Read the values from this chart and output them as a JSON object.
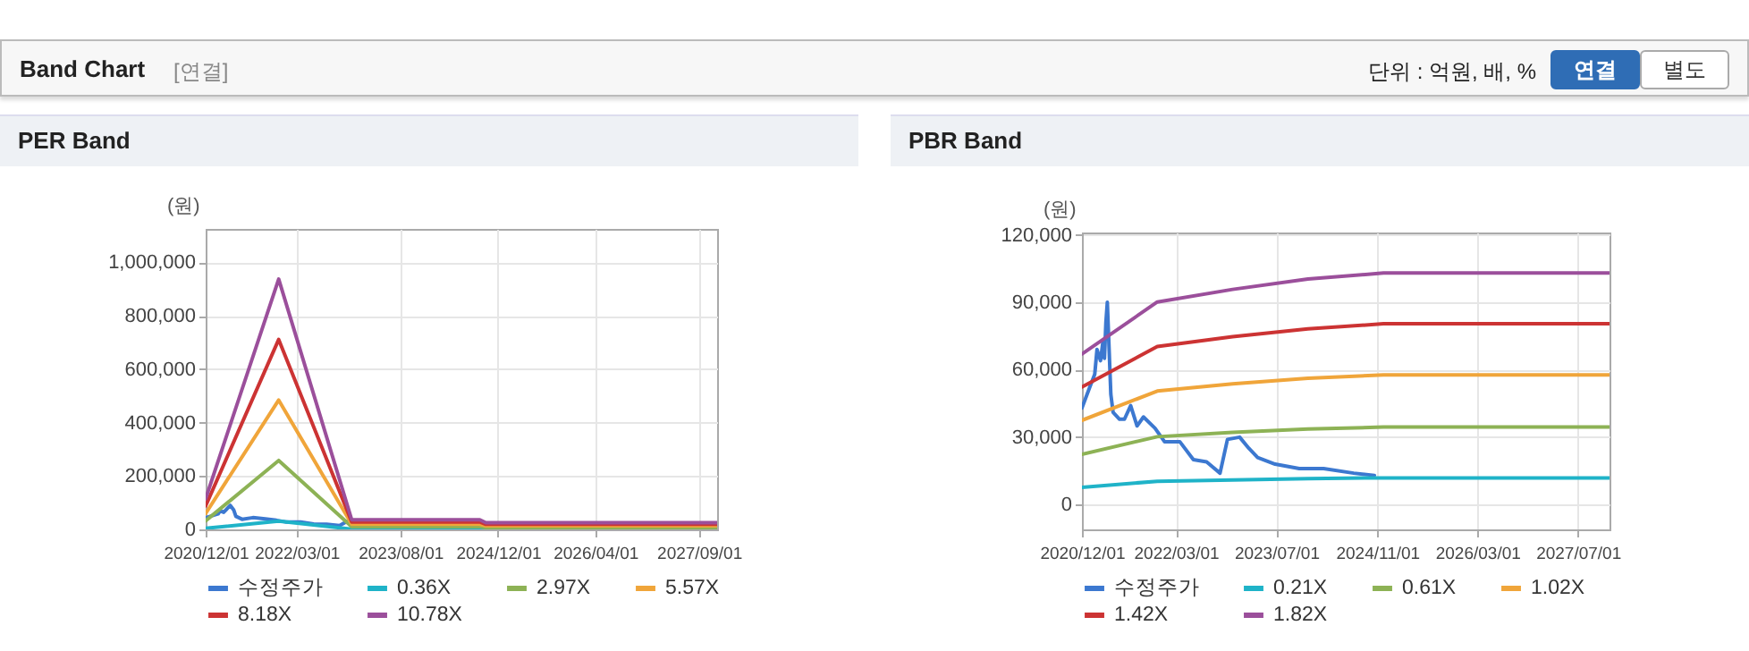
{
  "chart_data": [
    {
      "type": "other",
      "title": "Band Chart",
      "annotations": [
        "[연결]",
        "단위 : 억원, 배, %",
        "연결",
        "별도"
      ]
    },
    {
      "type": "line",
      "title": "PER Band",
      "ylabel": "(원)",
      "xlim": [
        "2020-12-01",
        "2027-12-01"
      ],
      "xticks": [
        {
          "value": "2020-12-01",
          "label": "2020/12/01"
        },
        {
          "value": "2022-03-01",
          "label": "2022/03/01"
        },
        {
          "value": "2023-08-01",
          "label": "2023/08/01"
        },
        {
          "value": "2024-12-01",
          "label": "2024/12/01"
        },
        {
          "value": "2026-04-01",
          "label": "2026/04/01"
        },
        {
          "value": "2027-09-01",
          "label": "2027/09/01"
        }
      ],
      "ylim": [
        0,
        1125000
      ],
      "yticks": [
        0,
        {
          "value": 200000,
          "label": "200,000"
        },
        {
          "value": 400000,
          "label": "400,000"
        },
        {
          "value": 600000,
          "label": "600,000"
        },
        {
          "value": 800000,
          "label": "800,000"
        },
        {
          "value": 1000000,
          "label": "1,000,000"
        }
      ],
      "grid": true,
      "legend": "bottom",
      "marker": "none",
      "line_style": "solid",
      "series": [
        {
          "name": "수정주가",
          "color": "#3c78d0",
          "x": [
            "2020-12-01",
            "2021-01-07",
            "2021-02-01",
            "2021-02-12",
            "2021-03-01",
            "2021-04-03",
            "2021-04-20",
            "2021-05-01",
            "2021-06-01",
            "2021-07-25",
            "2021-09-25",
            "2021-11-20",
            "2022-01-05",
            "2022-03-20",
            "2022-05-25",
            "2022-07-28",
            "2022-10-01",
            "2022-11-06",
            "2023-01-04"
          ],
          "values": [
            43000,
            52000,
            58000,
            69000,
            64000,
            90000,
            73000,
            49000,
            38000,
            44000,
            39000,
            34000,
            28000,
            28000,
            20000,
            19000,
            14000,
            29000,
            30000
          ]
        },
        {
          "name": "0.36X",
          "color": "#1fb3c8",
          "x": [
            "2020-12-01",
            "2021-12-01",
            "2022-12-01",
            "2024-09-01",
            "2024-10-01",
            "2027-12-01"
          ],
          "values": [
            4000,
            31000,
            1000,
            1000,
            1000,
            1000
          ]
        },
        {
          "name": "2.97X",
          "color": "#8db255",
          "x": [
            "2020-12-01",
            "2021-12-01",
            "2022-12-01",
            "2024-09-01",
            "2024-10-01",
            "2027-12-01"
          ],
          "values": [
            32000,
            258000,
            10000,
            10000,
            7000,
            7000
          ]
        },
        {
          "name": "5.57X",
          "color": "#f0a53a",
          "x": [
            "2020-12-01",
            "2021-12-01",
            "2022-12-01",
            "2024-09-01",
            "2024-10-01",
            "2027-12-01"
          ],
          "values": [
            60000,
            484000,
            19000,
            19000,
            13000,
            13000
          ]
        },
        {
          "name": "8.18X",
          "color": "#cc3333",
          "x": [
            "2020-12-01",
            "2021-12-01",
            "2022-12-01",
            "2024-09-01",
            "2024-10-01",
            "2027-12-01"
          ],
          "values": [
            88000,
            711000,
            28000,
            28000,
            19000,
            19000
          ]
        },
        {
          "name": "10.78X",
          "color": "#9b4f9b",
          "x": [
            "2020-12-01",
            "2021-12-01",
            "2022-12-01",
            "2024-09-01",
            "2024-10-01",
            "2027-12-01"
          ],
          "values": [
            115000,
            937000,
            36000,
            36000,
            25000,
            25000
          ]
        }
      ]
    },
    {
      "type": "line",
      "title": "PBR Band",
      "ylabel": "(원)",
      "xlim": [
        "2020-12-01",
        "2027-12-01"
      ],
      "xticks": [
        {
          "value": "2020-12-01",
          "label": "2020/12/01"
        },
        {
          "value": "2022-03-01",
          "label": "2022/03/01"
        },
        {
          "value": "2023-07-01",
          "label": "2023/07/01"
        },
        {
          "value": "2024-11-01",
          "label": "2024/11/01"
        },
        {
          "value": "2026-03-01",
          "label": "2026/03/01"
        },
        {
          "value": "2027-07-01",
          "label": "2027/07/01"
        }
      ],
      "ylim": [
        -11000,
        121000
      ],
      "yticks": [
        0,
        {
          "value": 30000,
          "label": "30,000"
        },
        {
          "value": 60000,
          "label": "60,000"
        },
        {
          "value": 90000,
          "label": "90,000"
        },
        {
          "value": 120000,
          "label": "120,000"
        }
      ],
      "grid": true,
      "legend": "bottom",
      "marker": "none",
      "line_style": "solid",
      "series": [
        {
          "name": "수정주가",
          "color": "#3c78d0",
          "x": [
            "2020-12-01",
            "2021-01-07",
            "2021-02-01",
            "2021-02-12",
            "2021-03-01",
            "2021-03-12",
            "2021-03-20",
            "2021-03-27",
            "2021-04-03",
            "2021-04-10",
            "2021-04-20",
            "2021-05-01",
            "2021-06-01",
            "2021-06-25",
            "2021-07-25",
            "2021-08-25",
            "2021-09-25",
            "2021-11-20",
            "2022-01-05",
            "2022-03-20",
            "2022-05-25",
            "2022-07-28",
            "2022-10-01",
            "2022-11-06",
            "2023-01-04",
            "2023-02-18",
            "2023-04-01",
            "2023-06-25",
            "2023-10-20",
            "2024-02-15",
            "2024-07-10",
            "2024-10-18"
          ],
          "values": [
            43000,
            52000,
            58000,
            69000,
            64000,
            72000,
            65000,
            81000,
            90000,
            73000,
            49000,
            41000,
            38000,
            38000,
            44000,
            35000,
            39000,
            34000,
            28000,
            28000,
            20000,
            19000,
            14000,
            29000,
            30000,
            25000,
            21000,
            18000,
            16000,
            16000,
            14000,
            13000
          ]
        },
        {
          "name": "0.21X",
          "color": "#1fb3c8",
          "x": [
            "2020-12-01",
            "2021-12-01",
            "2022-12-01",
            "2023-12-01",
            "2024-12-01",
            "2027-12-01"
          ],
          "values": [
            7700,
            10400,
            11000,
            11600,
            11900,
            11900
          ]
        },
        {
          "name": "0.61X",
          "color": "#8db255",
          "x": [
            "2020-12-01",
            "2021-12-01",
            "2022-12-01",
            "2023-12-01",
            "2024-12-01",
            "2027-12-01"
          ],
          "values": [
            22400,
            30200,
            32100,
            33600,
            34500,
            34500
          ]
        },
        {
          "name": "1.02X",
          "color": "#f0a53a",
          "x": [
            "2020-12-01",
            "2021-12-01",
            "2022-12-01",
            "2023-12-01",
            "2024-12-01",
            "2027-12-01"
          ],
          "values": [
            37500,
            50500,
            53700,
            56200,
            57700,
            57700
          ]
        },
        {
          "name": "1.42X",
          "color": "#cc3333",
          "x": [
            "2020-12-01",
            "2021-12-01",
            "2022-12-01",
            "2023-12-01",
            "2024-12-01",
            "2027-12-01"
          ],
          "values": [
            52300,
            70300,
            74700,
            78200,
            80400,
            80400
          ]
        },
        {
          "name": "1.82X",
          "color": "#9b4f9b",
          "x": [
            "2020-12-01",
            "2021-12-01",
            "2022-12-01",
            "2023-12-01",
            "2024-12-01",
            "2027-12-01"
          ],
          "values": [
            67000,
            90100,
            95700,
            100300,
            103000,
            103000
          ]
        }
      ]
    }
  ]
}
